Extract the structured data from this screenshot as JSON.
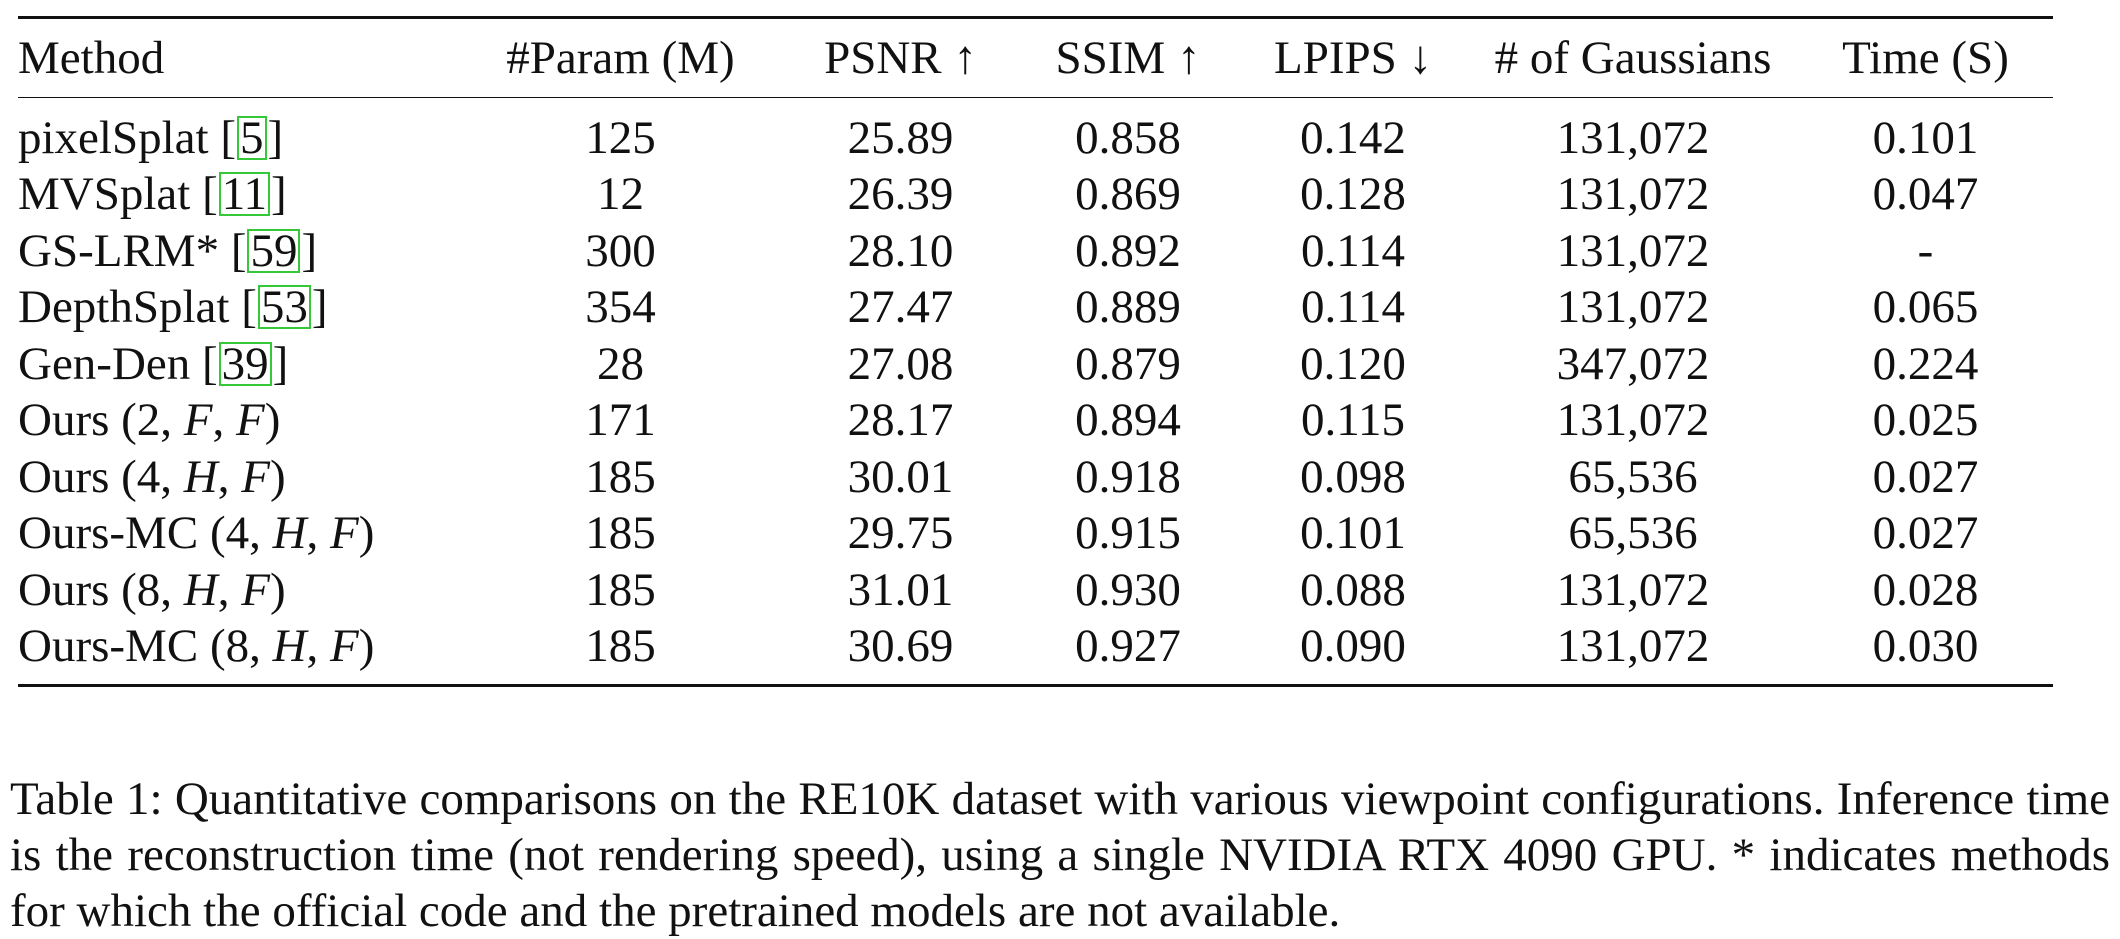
{
  "table": {
    "headers": [
      "Method",
      "#Param (M)",
      "PSNR ↑",
      "SSIM ↑",
      "LPIPS ↓",
      "# of Gaussians",
      "Time (S)"
    ],
    "rows": [
      {
        "method": "pixelSplat [",
        "cite": "5",
        "method_suffix": "]",
        "params": "125",
        "psnr": "25.89",
        "ssim": "0.858",
        "lpips": "0.142",
        "gaussians": "131,072",
        "time": "0.101"
      },
      {
        "method": "MVSplat [",
        "cite": "11",
        "method_suffix": "]",
        "params": "12",
        "psnr": "26.39",
        "ssim": "0.869",
        "lpips": "0.128",
        "gaussians": "131,072",
        "time": "0.047"
      },
      {
        "method": "GS-LRM* [",
        "cite": "59",
        "method_suffix": "]",
        "params": "300",
        "psnr": "28.10",
        "ssim": "0.892",
        "lpips": "0.114",
        "gaussians": "131,072",
        "time": "-"
      },
      {
        "method": "DepthSplat [",
        "cite": "53",
        "method_suffix": "]",
        "params": "354",
        "psnr": "27.47",
        "ssim": "0.889",
        "lpips": "0.114",
        "gaussians": "131,072",
        "time": "0.065"
      },
      {
        "method": "Gen-Den [",
        "cite": "39",
        "method_suffix": "]",
        "params": "28",
        "psnr": "27.08",
        "ssim": "0.879",
        "lpips": "0.120",
        "gaussians": "347,072",
        "time": "0.224"
      },
      {
        "method": "Ours ",
        "config": [
          "2",
          "F",
          "F"
        ],
        "params": "171",
        "psnr": "28.17",
        "ssim": "0.894",
        "lpips": "0.115",
        "gaussians": "131,072",
        "time": "0.025",
        "bold": [
          "time"
        ]
      },
      {
        "method": "Ours ",
        "config": [
          "4",
          "H",
          "F"
        ],
        "params": "185",
        "psnr": "30.01",
        "ssim": "0.918",
        "lpips": "0.098",
        "gaussians": "65,536",
        "time": "0.027",
        "bold": [
          "gaussians"
        ]
      },
      {
        "method": "Ours-MC ",
        "config": [
          "4",
          "H",
          "F"
        ],
        "params": "185",
        "psnr": "29.75",
        "ssim": "0.915",
        "lpips": "0.101",
        "gaussians": "65,536",
        "time": "0.027",
        "bold": [
          "gaussians"
        ]
      },
      {
        "method": "Ours ",
        "config": [
          "8",
          "H",
          "F"
        ],
        "params": "185",
        "psnr": "31.01",
        "ssim": "0.930",
        "lpips": "0.088",
        "gaussians": "131,072",
        "time": "0.028",
        "bold": [
          "psnr",
          "ssim",
          "lpips"
        ]
      },
      {
        "method": "Ours-MC ",
        "config": [
          "8",
          "H",
          "F"
        ],
        "params": "185",
        "psnr": "30.69",
        "ssim": "0.927",
        "lpips": "0.090",
        "gaussians": "131,072",
        "time": "0.030"
      }
    ]
  },
  "caption": "Table 1: Quantitative comparisons on the RE10K dataset with various viewpoint configurations. Inference time is the reconstruction time (not rendering speed), using a single NVIDIA RTX 4090 GPU. * indicates methods for which the official code and the pretrained models are not available.",
  "colors": {
    "citation_box": "#35c93a",
    "text": "#111111"
  }
}
